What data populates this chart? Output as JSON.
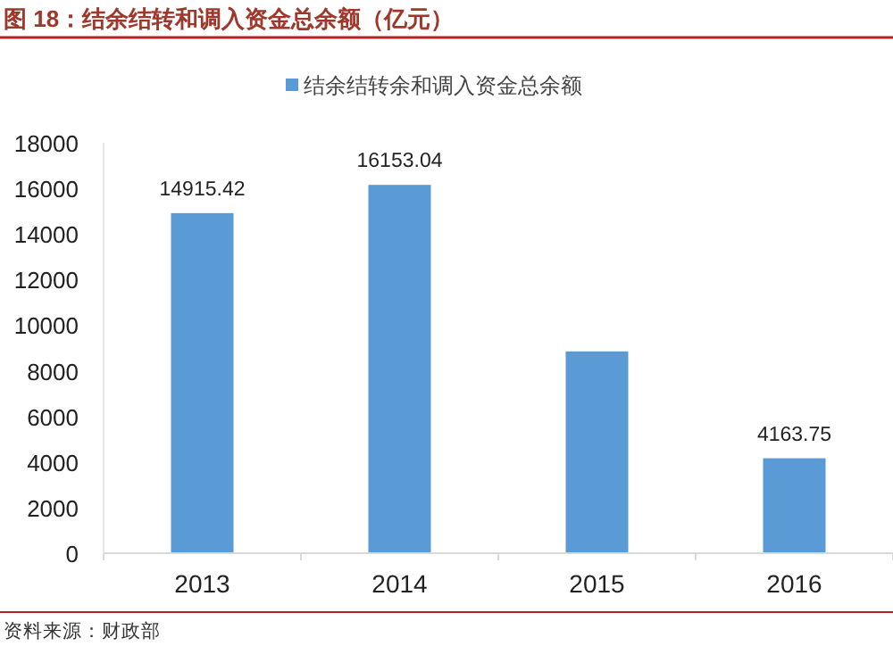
{
  "chart_data": {
    "type": "bar",
    "title": "图 18：结余结转和调入资金总余额（亿元）",
    "categories": [
      "2013",
      "2014",
      "2015",
      "2016"
    ],
    "series": [
      {
        "name": "结余结转余和调入资金总余额",
        "color": "#5b9bd5",
        "values": [
          14915.42,
          16153.04,
          8850,
          4163.75
        ],
        "value_labels": [
          "14915.42",
          "16153.04",
          null,
          "4163.75"
        ]
      }
    ],
    "ylim": [
      0,
      18000
    ],
    "yticks": [
      0,
      2000,
      4000,
      6000,
      8000,
      10000,
      12000,
      14000,
      16000,
      18000
    ],
    "grid": false,
    "legend": "top",
    "annotations": [
      "资料来源：财政部"
    ]
  }
}
